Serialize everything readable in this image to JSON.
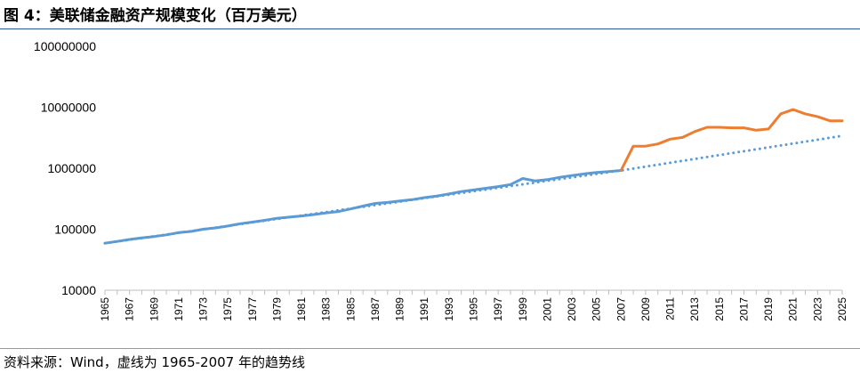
{
  "header": {
    "title": "图 4：美联储金融资产规模变化（百万美元）"
  },
  "footer": {
    "source": "资料来源：Wind，虚线为 1965-2007 年的趋势线"
  },
  "chart_data": {
    "type": "line",
    "title": "图 4：美联储金融资产规模变化（百万美元）",
    "xlabel": "",
    "ylabel": "",
    "yscale": "log",
    "ylim": [
      10000,
      100000000
    ],
    "xlim": [
      1965,
      2025
    ],
    "grid": false,
    "legend": "none",
    "x_tick_labels": [
      "1965",
      "1967",
      "1969",
      "1971",
      "1973",
      "1975",
      "1977",
      "1979",
      "1981",
      "1983",
      "1985",
      "1987",
      "1989",
      "1991",
      "1993",
      "1995",
      "1997",
      "1999",
      "2001",
      "2003",
      "2005",
      "2007",
      "2009",
      "2011",
      "2013",
      "2015",
      "2017",
      "2019",
      "2021",
      "2023",
      "2025"
    ],
    "y_tick_labels": [
      "10000",
      "100000",
      "1000000",
      "10000000",
      "100000000"
    ],
    "y_tick_values": [
      10000,
      100000,
      1000000,
      10000000,
      100000000
    ],
    "series": [
      {
        "color": "#5b9bd5",
        "style": "solid",
        "x": [
          1965,
          1966,
          1967,
          1968,
          1969,
          1970,
          1971,
          1972,
          1973,
          1974,
          1975,
          1976,
          1977,
          1978,
          1979,
          1980,
          1981,
          1982,
          1983,
          1984,
          1985,
          1986,
          1987,
          1988,
          1989,
          1990,
          1991,
          1992,
          1993,
          1994,
          1995,
          1996,
          1997,
          1998,
          1999,
          2000,
          2001,
          2002,
          2003,
          2004,
          2005,
          2006,
          2007
        ],
        "y": [
          59000,
          63000,
          68000,
          72000,
          76000,
          81000,
          88000,
          92000,
          100000,
          105000,
          113000,
          123000,
          131000,
          140000,
          151000,
          158000,
          165000,
          174000,
          185000,
          195000,
          215000,
          240000,
          265000,
          275000,
          290000,
          305000,
          330000,
          350000,
          380000,
          415000,
          440000,
          470000,
          500000,
          540000,
          680000,
          620000,
          650000,
          710000,
          760000,
          810000,
          850000,
          880000,
          920000
        ]
      },
      {
        "color": "#ed7d31",
        "style": "solid",
        "x": [
          2007,
          2008,
          2009,
          2010,
          2011,
          2012,
          2013,
          2014,
          2015,
          2016,
          2017,
          2018,
          2019,
          2020,
          2021,
          2022,
          2023,
          2024,
          2025
        ],
        "y": [
          920000,
          2300000,
          2300000,
          2500000,
          3000000,
          3200000,
          4000000,
          4700000,
          4700000,
          4600000,
          4600000,
          4200000,
          4400000,
          7800000,
          9200000,
          7800000,
          7000000,
          6000000,
          6000000
        ]
      },
      {
        "color": "#5b9bd5",
        "style": "dotted",
        "x": [
          1965,
          2007,
          2025
        ],
        "y": [
          59000,
          920000,
          3400000
        ]
      }
    ]
  }
}
